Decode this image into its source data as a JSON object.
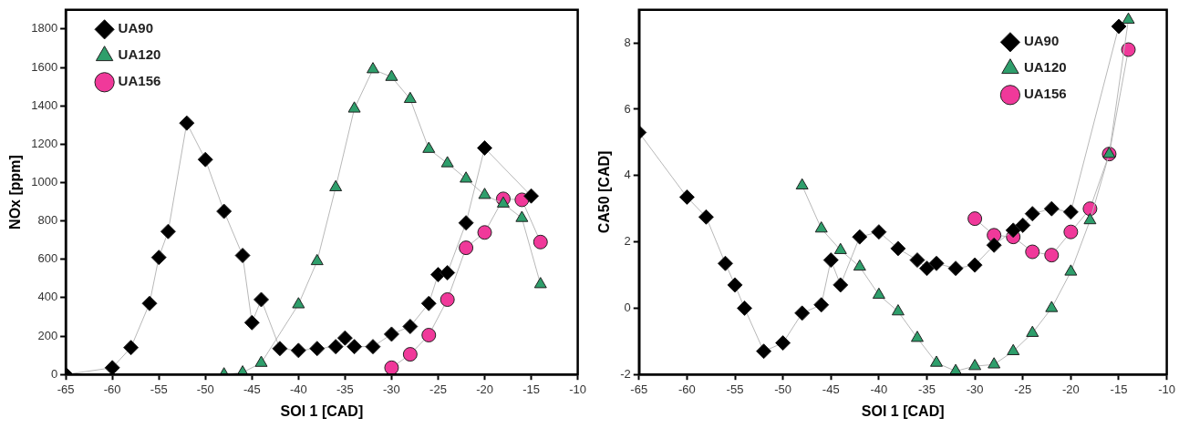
{
  "chart_data": [
    {
      "type": "line",
      "xlabel": "SOI 1 [CAD]",
      "ylabel": "NOx [ppm]",
      "xlim": [
        -65,
        -10
      ],
      "xticks": [
        -65,
        -60,
        -55,
        -50,
        -45,
        -40,
        -35,
        -30,
        -25,
        -20,
        -15,
        -10
      ],
      "ylim": [
        0,
        1900
      ],
      "yticks": [
        0,
        200,
        400,
        600,
        800,
        1000,
        1200,
        1400,
        1600,
        1800
      ],
      "grid": false,
      "legend": "top left",
      "line_style": "solid",
      "series": [
        {
          "name": "UA156",
          "color": "#f0399a",
          "marker": "circle",
          "x": [
            -30,
            -28,
            -26,
            -24,
            -22,
            -20,
            -18,
            -16,
            -14
          ],
          "values": [
            35,
            105,
            205,
            390,
            660,
            740,
            915,
            910,
            690
          ]
        },
        {
          "name": "UA120",
          "color": "#2e9e6b",
          "marker": "triangle",
          "x": [
            -48,
            -46,
            -44,
            -40,
            -38,
            -36,
            -34,
            -32,
            -30,
            -28,
            -26,
            -24,
            -22,
            -20,
            -18,
            -16,
            -14
          ],
          "values": [
            0,
            10,
            60,
            365,
            590,
            975,
            1385,
            1590,
            1550,
            1435,
            1175,
            1100,
            1020,
            935,
            890,
            815,
            470
          ]
        },
        {
          "name": "UA90",
          "color": "#000000",
          "marker": "diamond",
          "x": [
            -65,
            -60,
            -58,
            -56,
            -55,
            -54,
            -52,
            -50,
            -48,
            -46,
            -45,
            -44,
            -42,
            -40,
            -38,
            -36,
            -35,
            -34,
            -32,
            -30,
            -28,
            -26,
            -25,
            -24,
            -22,
            -20,
            -15
          ],
          "values": [
            0,
            35,
            140,
            370,
            610,
            745,
            1310,
            1120,
            850,
            620,
            270,
            390,
            135,
            125,
            135,
            145,
            190,
            145,
            145,
            210,
            250,
            370,
            520,
            530,
            790,
            1180,
            930
          ]
        }
      ]
    },
    {
      "type": "line",
      "xlabel": "SOI 1 [CAD]",
      "ylabel": "CA50 [CAD]",
      "xlim": [
        -65,
        -10
      ],
      "xticks": [
        -65,
        -60,
        -55,
        -50,
        -45,
        -40,
        -35,
        -30,
        -25,
        -20,
        -15,
        -10
      ],
      "ylim": [
        -2,
        9
      ],
      "yticks": [
        -2,
        0,
        2,
        4,
        6,
        8
      ],
      "grid": false,
      "legend": "top right",
      "line_style": "solid",
      "series": [
        {
          "name": "UA156",
          "color": "#f0399a",
          "marker": "circle",
          "x": [
            -30,
            -28,
            -26,
            -24,
            -22,
            -20,
            -18,
            -16,
            -14
          ],
          "values": [
            2.7,
            2.2,
            2.15,
            1.7,
            1.6,
            2.3,
            3.0,
            4.65,
            7.8
          ]
        },
        {
          "name": "UA120",
          "color": "#2e9e6b",
          "marker": "triangle",
          "x": [
            -48,
            -46,
            -44,
            -42,
            -40,
            -38,
            -36,
            -34,
            -32,
            -30,
            -28,
            -26,
            -24,
            -22,
            -20,
            -18,
            -16,
            -14
          ],
          "values": [
            3.7,
            2.4,
            1.75,
            1.25,
            0.4,
            -0.1,
            -0.9,
            -1.65,
            -1.9,
            -1.75,
            -1.7,
            -1.3,
            -0.75,
            0.0,
            1.1,
            2.65,
            4.65,
            8.7
          ]
        },
        {
          "name": "UA90",
          "color": "#000000",
          "marker": "diamond",
          "x": [
            -65,
            -60,
            -58,
            -56,
            -55,
            -54,
            -52,
            -50,
            -48,
            -46,
            -45,
            -44,
            -42,
            -40,
            -38,
            -36,
            -35,
            -34,
            -32,
            -30,
            -28,
            -26,
            -25,
            -24,
            -22,
            -20,
            -15
          ],
          "values": [
            5.3,
            3.35,
            2.75,
            1.35,
            0.7,
            0.0,
            -1.3,
            -1.05,
            -0.15,
            0.1,
            1.45,
            0.7,
            2.15,
            2.3,
            1.8,
            1.45,
            1.2,
            1.35,
            1.2,
            1.3,
            1.9,
            2.35,
            2.5,
            2.85,
            3.0,
            2.9,
            8.5
          ]
        }
      ]
    }
  ]
}
